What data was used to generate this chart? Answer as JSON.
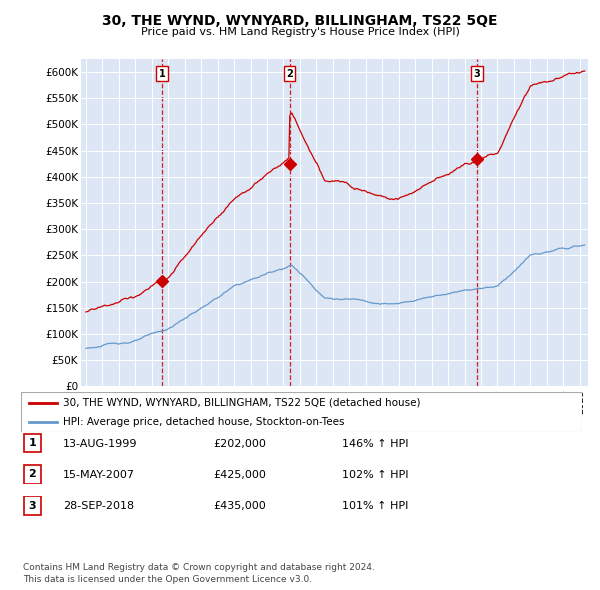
{
  "title": "30, THE WYND, WYNYARD, BILLINGHAM, TS22 5QE",
  "subtitle": "Price paid vs. HM Land Registry's House Price Index (HPI)",
  "ylabel_ticks": [
    "£0",
    "£50K",
    "£100K",
    "£150K",
    "£200K",
    "£250K",
    "£300K",
    "£350K",
    "£400K",
    "£450K",
    "£500K",
    "£550K",
    "£600K"
  ],
  "ytick_values": [
    0,
    50000,
    100000,
    150000,
    200000,
    250000,
    300000,
    350000,
    400000,
    450000,
    500000,
    550000,
    600000
  ],
  "ylim": [
    0,
    625000
  ],
  "xlim_start": 1994.7,
  "xlim_end": 2025.5,
  "sale_color": "#cc0000",
  "hpi_color": "#6699cc",
  "sale_label": "30, THE WYND, WYNYARD, BILLINGHAM, TS22 5QE (detached house)",
  "hpi_label": "HPI: Average price, detached house, Stockton-on-Tees",
  "transactions": [
    {
      "date_num": 1999.617,
      "price": 202000,
      "label": "1"
    },
    {
      "date_num": 2007.37,
      "price": 425000,
      "label": "2"
    },
    {
      "date_num": 2018.742,
      "price": 435000,
      "label": "3"
    }
  ],
  "transaction_table": [
    {
      "num": "1",
      "date": "13-AUG-1999",
      "price": "£202,000",
      "hpi": "146% ↑ HPI"
    },
    {
      "num": "2",
      "date": "15-MAY-2007",
      "price": "£425,000",
      "hpi": "102% ↑ HPI"
    },
    {
      "num": "3",
      "date": "28-SEP-2018",
      "price": "£435,000",
      "hpi": "101% ↑ HPI"
    }
  ],
  "footer": "Contains HM Land Registry data © Crown copyright and database right 2024.\nThis data is licensed under the Open Government Licence v3.0.",
  "vline_color": "#cc0000",
  "background_color": "#ffffff",
  "plot_bg_color": "#dce6f5"
}
